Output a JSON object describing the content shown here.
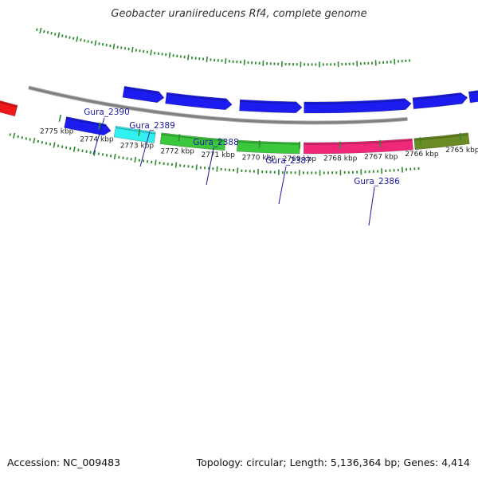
{
  "title": "Geobacter uraniireducens Rf4, complete genome",
  "footer": {
    "accession": "Accession: NC_009483",
    "summary": "Topology: circular; Length: 5,136,364 bp; Genes: 4,414"
  },
  "colors": {
    "backbone": "#808080",
    "tick": "#2e8b2e",
    "label": "#1a1aa6",
    "cds_blue": "#1c1cf0",
    "cyan": "#33f0f0",
    "green": "#3cc83c",
    "pink": "#f0287a",
    "olive": "#6b8c24",
    "red": "#f01818"
  },
  "scale": {
    "unit": "kbp",
    "labels": [
      {
        "kbp": 2775,
        "text": "2775 kbp"
      },
      {
        "kbp": 2774,
        "text": "2774 kbp"
      },
      {
        "kbp": 2773,
        "text": "2773 kbp"
      },
      {
        "kbp": 2772,
        "text": "2772 kbp"
      },
      {
        "kbp": 2771,
        "text": "2771 kbp"
      },
      {
        "kbp": 2770,
        "text": "2770 kbp"
      },
      {
        "kbp": 2769,
        "text": "2769 kbp"
      },
      {
        "kbp": 2768,
        "text": "2768 kbp"
      },
      {
        "kbp": 2767,
        "text": "2767 kbp"
      },
      {
        "kbp": 2766,
        "text": "2766 kbp"
      },
      {
        "kbp": 2765,
        "text": "2765 kbp"
      }
    ]
  },
  "gene_labels": [
    {
      "name": "Gura_2390"
    },
    {
      "name": "Gura_2389"
    },
    {
      "name": "Gura_2388"
    },
    {
      "name": "Gura_2387"
    },
    {
      "name": "Gura_2386"
    }
  ],
  "features": [
    {
      "track": "outer",
      "color": "red",
      "from_kbp": 2776.9,
      "to_kbp": 2776.1,
      "arrow": false
    },
    {
      "track": "outer",
      "color": "cds_blue",
      "from_kbp": 2774.85,
      "to_kbp": 2773.7,
      "arrow": true
    },
    {
      "track": "outer",
      "color": "cyan",
      "from_kbp": 2773.6,
      "to_kbp": 2772.6,
      "arrow": false
    },
    {
      "track": "outer",
      "color": "green",
      "from_kbp": 2772.45,
      "to_kbp": 2770.85,
      "arrow": false
    },
    {
      "track": "outer",
      "color": "green",
      "from_kbp": 2770.55,
      "to_kbp": 2769.0,
      "arrow": false
    },
    {
      "track": "outer",
      "color": "pink",
      "from_kbp": 2768.9,
      "to_kbp": 2766.2,
      "arrow": false
    },
    {
      "track": "outer",
      "color": "olive",
      "from_kbp": 2766.15,
      "to_kbp": 2764.8,
      "arrow": false
    },
    {
      "track": "inner",
      "color": "cds_blue",
      "from_kbp": 2773.55,
      "to_kbp": 2772.5,
      "arrow": true
    },
    {
      "track": "inner",
      "color": "cds_blue",
      "from_kbp": 2772.45,
      "to_kbp": 2770.75,
      "arrow": true
    },
    {
      "track": "inner",
      "color": "cds_blue",
      "from_kbp": 2770.55,
      "to_kbp": 2768.95,
      "arrow": true
    },
    {
      "track": "inner",
      "color": "cds_blue",
      "from_kbp": 2768.9,
      "to_kbp": 2766.15,
      "arrow": true
    },
    {
      "track": "inner",
      "color": "cds_blue",
      "from_kbp": 2766.1,
      "to_kbp": 2764.7,
      "arrow": true
    },
    {
      "track": "inner",
      "color": "cds_blue",
      "from_kbp": 2764.65,
      "to_kbp": 2764.0,
      "arrow": true
    }
  ]
}
